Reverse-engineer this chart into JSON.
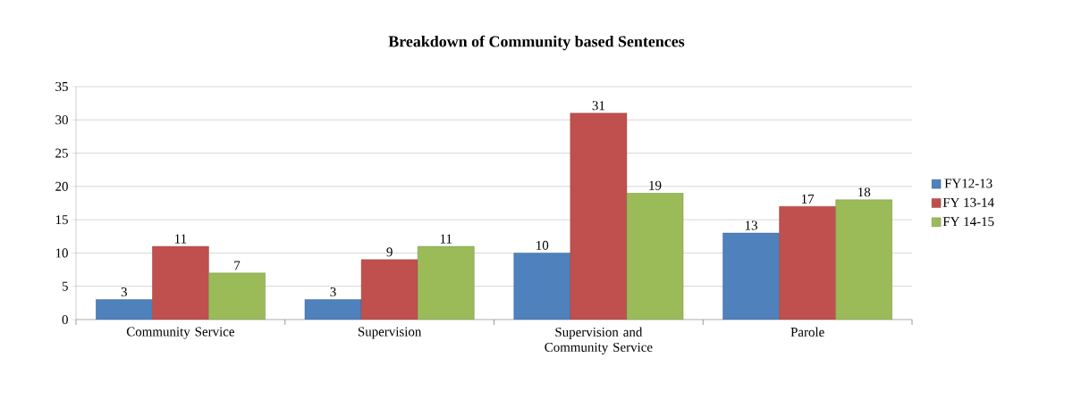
{
  "chart_data": {
    "type": "bar",
    "title": "Breakdown of Community based Sentences",
    "categories": [
      "Community Service",
      "Supervision",
      "Supervision and Community Service",
      "Parole"
    ],
    "series": [
      {
        "name": "FY12-13",
        "color": "#4f81bd",
        "values": [
          3,
          3,
          10,
          13
        ]
      },
      {
        "name": "FY 13-14",
        "color": "#c0504d",
        "values": [
          11,
          9,
          31,
          17
        ]
      },
      {
        "name": "FY 14-15",
        "color": "#9bbb59",
        "values": [
          7,
          11,
          19,
          18
        ]
      }
    ],
    "ylim": [
      0,
      35
    ],
    "yticks": [
      0,
      5,
      10,
      15,
      20,
      25,
      30,
      35
    ],
    "grid": "y",
    "legend": "right",
    "data_labels": true
  }
}
